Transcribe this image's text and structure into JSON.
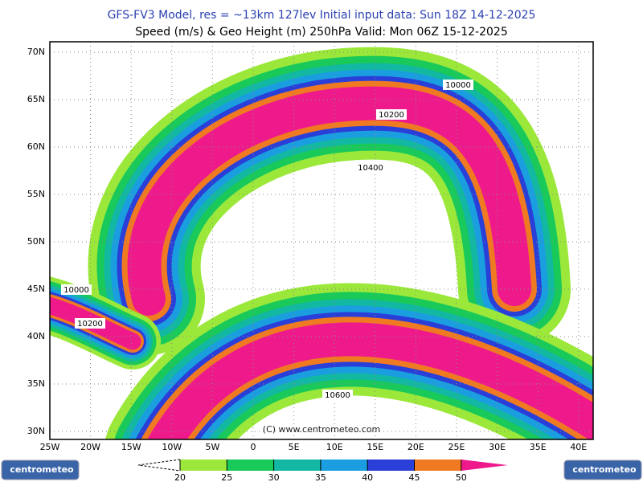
{
  "header": {
    "line1": "GFS-FV3 Model, res = ~13km 127lev   Initial input data: Sun 18Z 14-12-2025",
    "line2": "Speed (m/s) & Geo Height (m) 250hPa  Valid: Mon 06Z 15-12-2025"
  },
  "map": {
    "lat_labels": [
      "70N",
      "65N",
      "60N",
      "55N",
      "50N",
      "45N",
      "40N",
      "35N",
      "30N"
    ],
    "lon_labels": [
      "25W",
      "20W",
      "15W",
      "10W",
      "5W",
      "0",
      "5E",
      "10E",
      "15E",
      "20E",
      "25E",
      "30E",
      "35E",
      "40E"
    ],
    "contour_labels": [
      "10000",
      "10200",
      "10400",
      "10000",
      "10200",
      "10600"
    ],
    "credit": "(C) www.centrometeo.com"
  },
  "colorbar": {
    "labels": [
      20,
      25,
      30,
      35,
      40,
      45,
      50
    ]
  },
  "logos": {
    "left": "centrometeo",
    "right": "centrometeo"
  }
}
